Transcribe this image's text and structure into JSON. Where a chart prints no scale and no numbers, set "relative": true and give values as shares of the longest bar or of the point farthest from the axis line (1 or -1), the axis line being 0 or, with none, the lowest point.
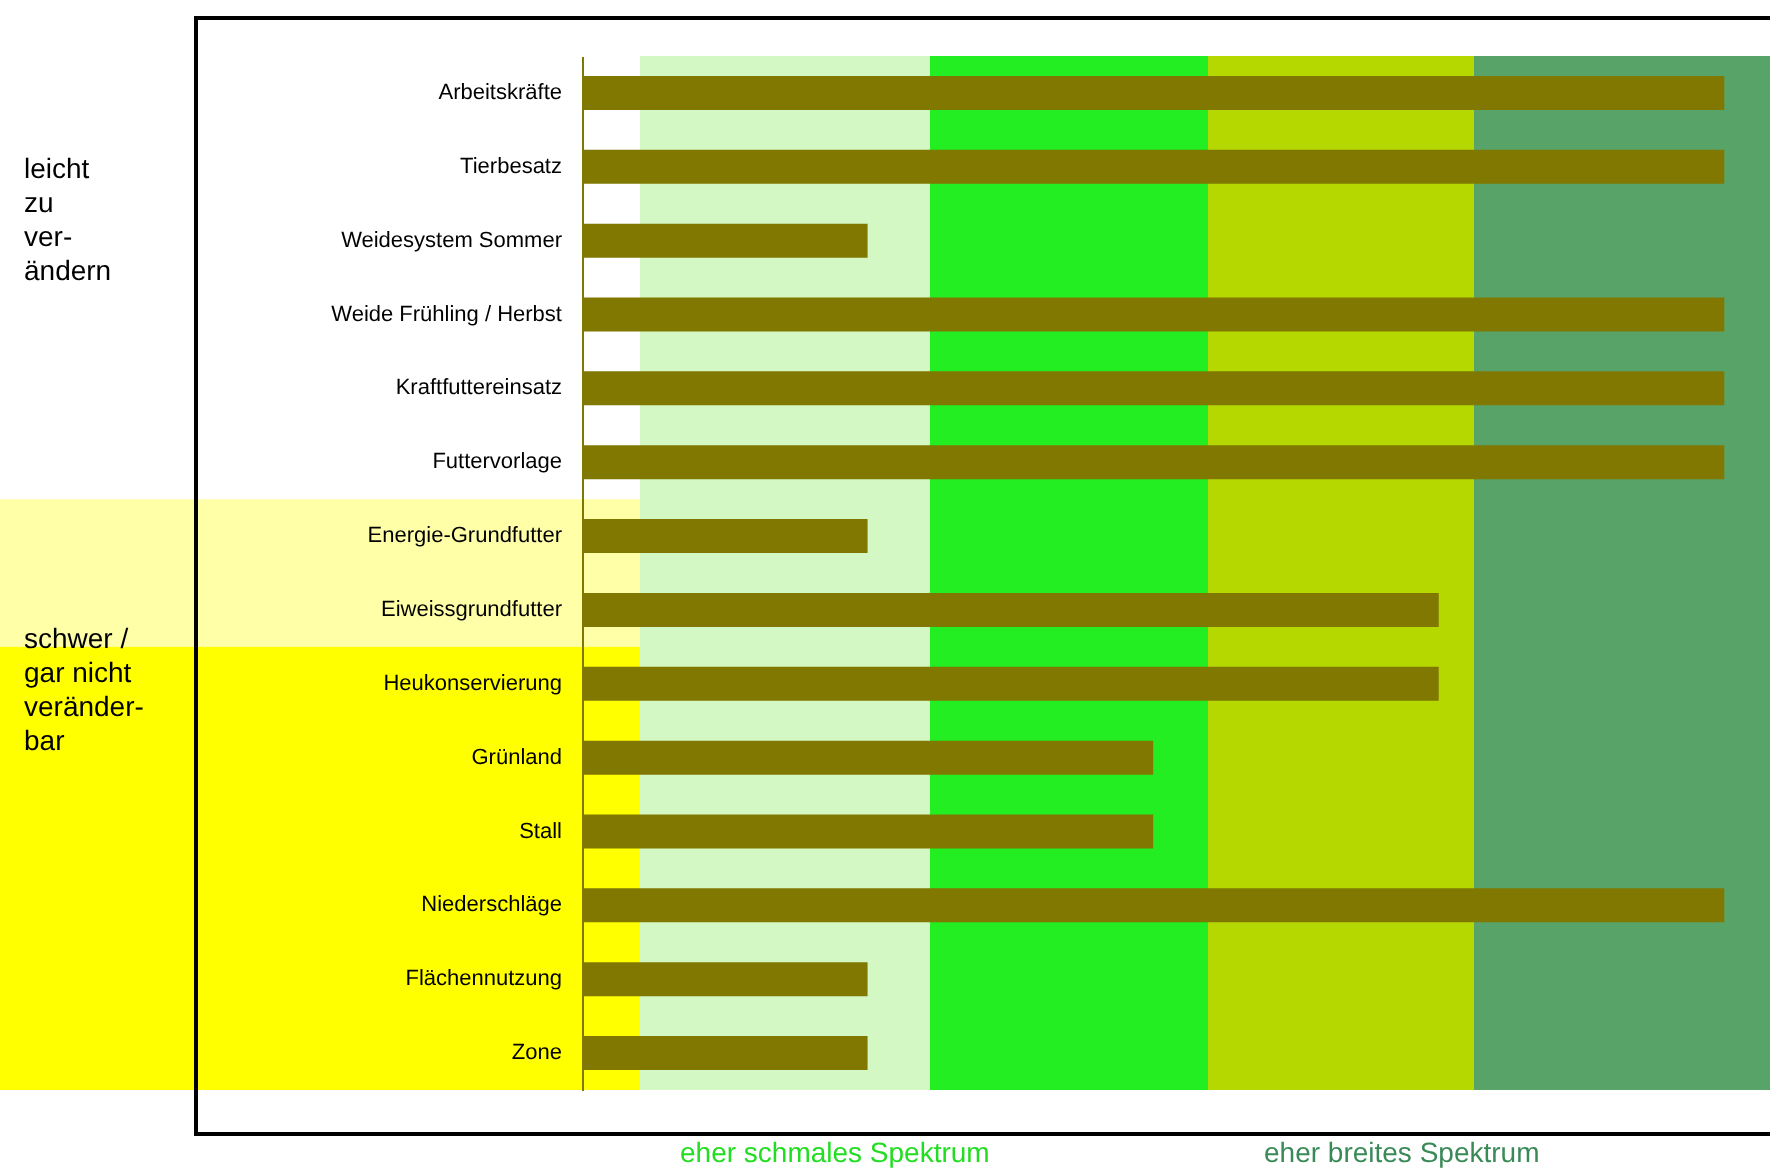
{
  "chart_data": {
    "type": "bar",
    "orientation": "horizontal",
    "relative": true,
    "categories": [
      "Arbeitskräfte",
      "Tierbesatz",
      "Weidesystem Sommer",
      "Weide Frühling / Herbst",
      "Kraftfuttereinsatz",
      "Futtervorlage",
      "Energie-Grundfutter",
      "Eiweissgrundfutter",
      "Heukonservierung",
      "Grünland",
      "Stall",
      "Niederschläge",
      "Flächennutzung",
      "Zone"
    ],
    "values": [
      1,
      1,
      0.25,
      1,
      1,
      1,
      0.25,
      0.75,
      0.75,
      0.5,
      0.5,
      1,
      0.25,
      0.25
    ],
    "color": "#807800",
    "bands": [
      {
        "axis": "y",
        "from": "Energie-Grundfutter",
        "to": "Eiweissgrundfutter",
        "color": "#ffffa8"
      },
      {
        "axis": "y",
        "from": "Heukonservierung",
        "to": "Zone",
        "color": "#ffff00"
      }
    ],
    "annotations": [
      "leicht\nzu\nver-\nändern",
      "schwer /\ngar nicht\nveränder-\nbar",
      "eher schmales Spektrum",
      "eher breites Spektrum"
    ]
  }
}
